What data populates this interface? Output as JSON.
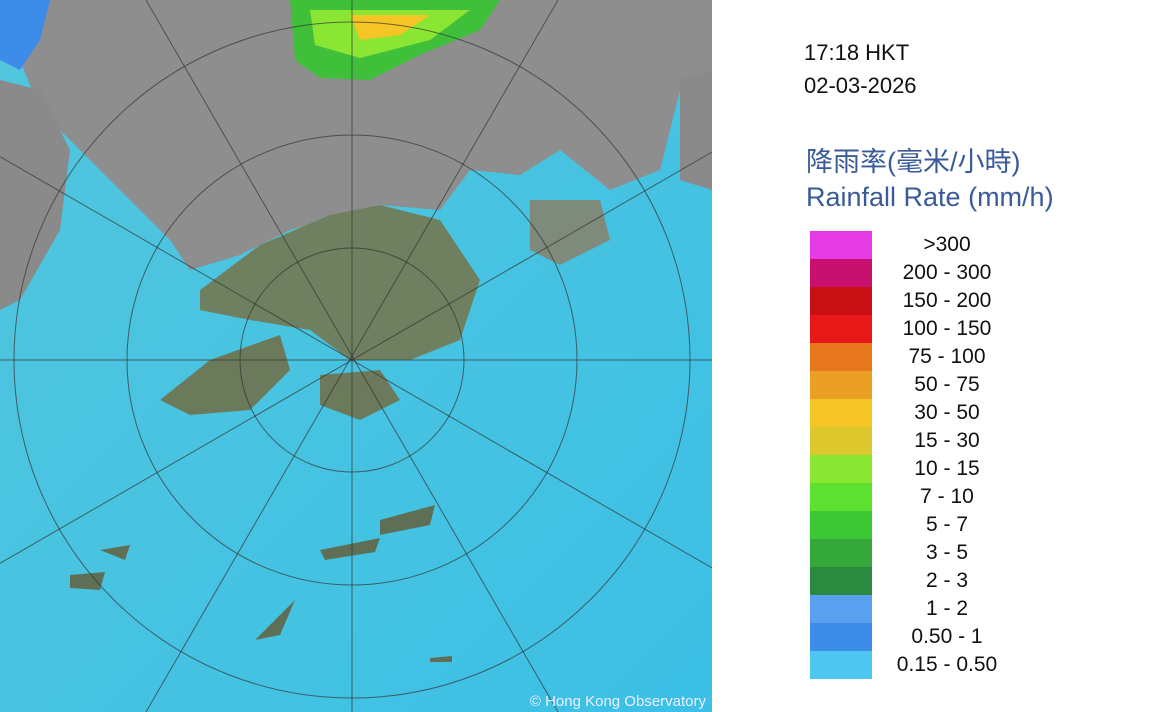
{
  "time": "17:18 HKT",
  "date": "02-03-2026",
  "legend": {
    "title_zh": "降雨率(毫米/小時)",
    "title_en": "Rainfall Rate (mm/h)",
    "items": [
      {
        "label": ">300",
        "color": "#e53be5"
      },
      {
        "label": "200 - 300",
        "color": "#c8106e"
      },
      {
        "label": "150 - 200",
        "color": "#c80f14"
      },
      {
        "label": "100 - 150",
        "color": "#e81818"
      },
      {
        "label": "75 - 100",
        "color": "#e8781e"
      },
      {
        "label": "50 - 75",
        "color": "#eaa024"
      },
      {
        "label": "30 - 50",
        "color": "#f4c524"
      },
      {
        "label": "15 - 30",
        "color": "#dcc82c"
      },
      {
        "label": "10 - 15",
        "color": "#8ae632"
      },
      {
        "label": "7 - 10",
        "color": "#5ee030"
      },
      {
        "label": "5 - 7",
        "color": "#3cc834"
      },
      {
        "label": "3 - 5",
        "color": "#34a83a"
      },
      {
        "label": "2 - 3",
        "color": "#2c8a40"
      },
      {
        "label": "1 - 2",
        "color": "#5aa0f0"
      },
      {
        "label": "0.50 - 1",
        "color": "#3c8ce8"
      },
      {
        "label": "0.15 - 0.50",
        "color": "#4ec6f2"
      }
    ]
  },
  "copyright": "© Hong Kong Observatory"
}
